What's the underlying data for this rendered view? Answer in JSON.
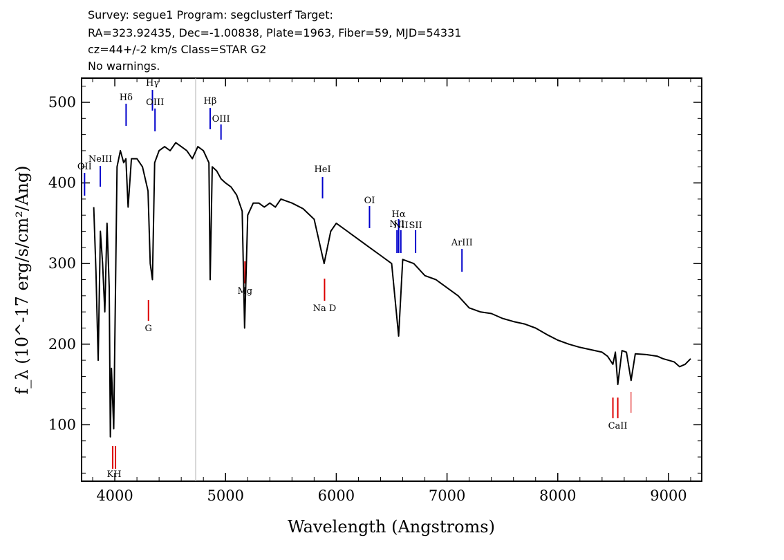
{
  "header": {
    "line1": "Survey: segue1 Program: segclusterf Target:",
    "line2": "RA=323.92435, Dec=-1.00838, Plate=1963, Fiber=59, MJD=54331",
    "line3": "cz=44+/-2 km/s Class=STAR G2",
    "line4": "No warnings."
  },
  "chart_data": {
    "type": "line",
    "xlabel": "Wavelength (Angstroms)",
    "ylabel": "f_λ (10^-17 erg/s/cm²/Ang)",
    "xlim": [
      3700,
      9300
    ],
    "ylim": [
      30,
      530
    ],
    "x_ticks": [
      4000,
      5000,
      6000,
      7000,
      8000,
      9000
    ],
    "y_ticks": [
      100,
      200,
      300,
      400,
      500
    ],
    "grid": false,
    "colors": {
      "flux": "#000000",
      "emission": "#0000cc",
      "absorption": "#dd0000",
      "marker": "#b0b0b0"
    },
    "series": [
      {
        "x": [
          3810,
          3830,
          3850,
          3870,
          3890,
          3910,
          3930,
          3950,
          3960,
          3970,
          3990,
          4020,
          4050,
          4080,
          4100,
          4120,
          4150,
          4200,
          4250,
          4300,
          4320,
          4340,
          4360,
          4400,
          4450,
          4500,
          4550,
          4600,
          4650,
          4700,
          4750,
          4800,
          4850,
          4861,
          4880,
          4920,
          4960,
          5000,
          5050,
          5100,
          5150,
          5172,
          5200,
          5250,
          5300,
          5350,
          5400,
          5450,
          5500,
          5600,
          5700,
          5800,
          5890,
          5950,
          6000,
          6100,
          6200,
          6300,
          6400,
          6500,
          6563,
          6600,
          6700,
          6800,
          6900,
          7000,
          7100,
          7200,
          7300,
          7400,
          7500,
          7600,
          7700,
          7800,
          7900,
          8000,
          8100,
          8200,
          8300,
          8400,
          8450,
          8498,
          8520,
          8542,
          8580,
          8620,
          8662,
          8700,
          8800,
          8900,
          8950,
          9000,
          9050,
          9100,
          9150,
          9200
        ],
        "y": [
          370,
          290,
          180,
          340,
          300,
          240,
          350,
          270,
          85,
          170,
          95,
          420,
          440,
          425,
          430,
          370,
          430,
          430,
          420,
          390,
          300,
          280,
          425,
          440,
          445,
          440,
          450,
          445,
          440,
          430,
          445,
          440,
          425,
          280,
          420,
          415,
          405,
          400,
          395,
          385,
          365,
          220,
          360,
          375,
          375,
          370,
          375,
          370,
          380,
          375,
          368,
          355,
          300,
          340,
          350,
          340,
          330,
          320,
          310,
          300,
          210,
          305,
          300,
          285,
          280,
          270,
          260,
          245,
          240,
          238,
          232,
          228,
          225,
          220,
          212,
          205,
          200,
          196,
          193,
          190,
          185,
          175,
          190,
          150,
          192,
          190,
          155,
          188,
          187,
          185,
          182,
          180,
          178,
          172,
          175,
          182
        ]
      }
    ],
    "line_labels": [
      {
        "label": "OII",
        "x": 3727,
        "kind": "emission"
      },
      {
        "label": "NeIII",
        "x": 3869,
        "kind": "emission"
      },
      {
        "label": "Hδ",
        "x": 4102,
        "kind": "emission"
      },
      {
        "label": "Hγ",
        "x": 4340,
        "kind": "emission"
      },
      {
        "label": "OIII",
        "x": 4363,
        "kind": "emission"
      },
      {
        "label": "Hβ",
        "x": 4861,
        "kind": "emission"
      },
      {
        "label": "OIII",
        "x": 4959,
        "kind": "emission"
      },
      {
        "label": "HeI",
        "x": 5876,
        "kind": "emission"
      },
      {
        "label": "OI",
        "x": 6300,
        "kind": "emission"
      },
      {
        "label": "NII",
        "x": 6548,
        "kind": "emission"
      },
      {
        "label": "Hα",
        "x": 6563,
        "kind": "emission"
      },
      {
        "label": "NII",
        "x": 6583,
        "kind": "emission"
      },
      {
        "label": "SII",
        "x": 6716,
        "kind": "emission"
      },
      {
        "label": "ArIII",
        "x": 7135,
        "kind": "emission"
      },
      {
        "label": "KH",
        "x": 3950,
        "kind": "absorption"
      },
      {
        "label": "G",
        "x": 4304,
        "kind": "absorption"
      },
      {
        "label": "Mg",
        "x": 5175,
        "kind": "absorption"
      },
      {
        "label": "Na D",
        "x": 5894,
        "kind": "absorption"
      },
      {
        "label": "CaII",
        "x": 8542,
        "kind": "absorption"
      }
    ]
  }
}
